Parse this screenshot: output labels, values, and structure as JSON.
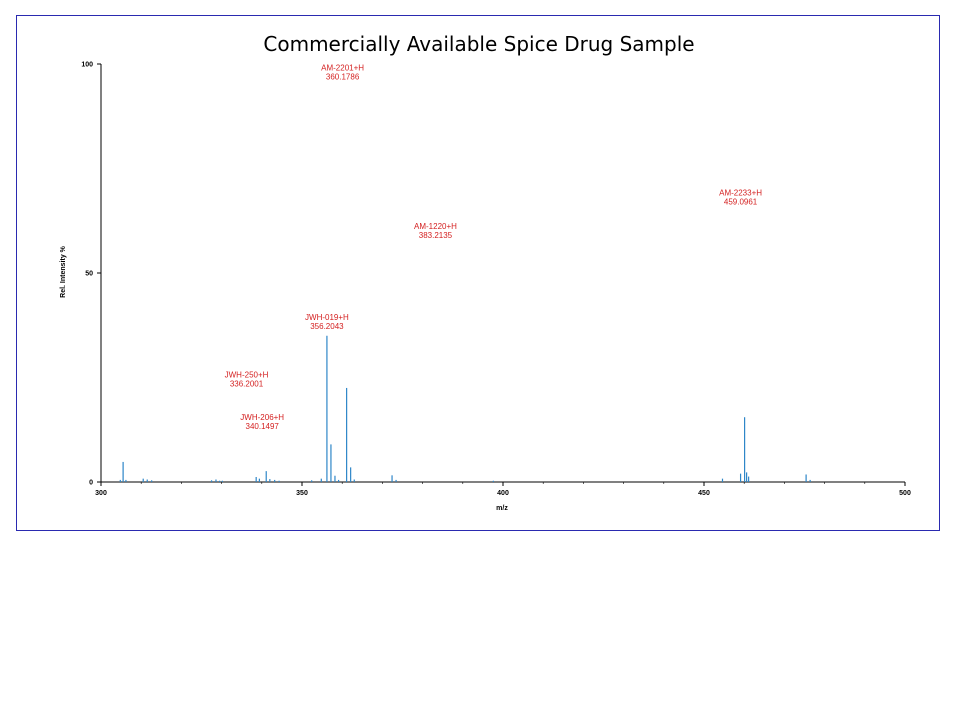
{
  "chart_data": {
    "type": "bar",
    "title": "Commercially Available Spice Drug Sample",
    "xlabel": "m/z",
    "ylabel": "Rel. Intensity %",
    "xlim": [
      300,
      500
    ],
    "ylim": [
      0,
      100
    ],
    "x_ticks": [
      300,
      350,
      400,
      450,
      500
    ],
    "y_ticks": [
      0,
      50,
      100
    ],
    "x_tick_labels": [
      "300",
      "350",
      "400",
      "450",
      "500"
    ],
    "y_tick_labels": [
      "0",
      "50",
      "100"
    ],
    "bar_color": "#2e86c8",
    "annotation_color": "#d42020",
    "peaks": [
      {
        "x": 304.8,
        "y": 0.5
      },
      {
        "x": 305.5,
        "y": 4.8
      },
      {
        "x": 306.2,
        "y": 0.5
      },
      {
        "x": 310.5,
        "y": 0.8
      },
      {
        "x": 311.5,
        "y": 0.6
      },
      {
        "x": 312.6,
        "y": 0.4
      },
      {
        "x": 327.5,
        "y": 0.4
      },
      {
        "x": 328.6,
        "y": 0.6
      },
      {
        "x": 329.5,
        "y": 0.3
      },
      {
        "x": 330.2,
        "y": 0.3
      },
      {
        "x": 338.6,
        "y": 1.2
      },
      {
        "x": 339.4,
        "y": 0.8
      },
      {
        "x": 341.1,
        "y": 2.6
      },
      {
        "x": 342.0,
        "y": 0.7
      },
      {
        "x": 343.2,
        "y": 0.5
      },
      {
        "x": 344.3,
        "y": 0.3
      },
      {
        "x": 352.4,
        "y": 0.4
      },
      {
        "x": 354.8,
        "y": 0.8
      },
      {
        "x": 356.2,
        "y": 35.0
      },
      {
        "x": 357.2,
        "y": 9.0
      },
      {
        "x": 358.2,
        "y": 1.5
      },
      {
        "x": 359.1,
        "y": 0.5
      },
      {
        "x": 361.1,
        "y": 22.5
      },
      {
        "x": 362.1,
        "y": 3.5
      },
      {
        "x": 363.0,
        "y": 0.6
      },
      {
        "x": 372.4,
        "y": 1.6
      },
      {
        "x": 373.4,
        "y": 0.5
      },
      {
        "x": 397.6,
        "y": 0.3
      },
      {
        "x": 454.6,
        "y": 0.8
      },
      {
        "x": 459.1,
        "y": 2.0
      },
      {
        "x": 460.1,
        "y": 15.5
      },
      {
        "x": 460.6,
        "y": 2.3
      },
      {
        "x": 461.1,
        "y": 1.3
      },
      {
        "x": 475.4,
        "y": 1.8
      },
      {
        "x": 476.4,
        "y": 0.5
      }
    ],
    "annotations": [
      {
        "name": "AM-2201+H",
        "mz": "360.1786",
        "x": 360.1,
        "y": 98.5
      },
      {
        "name": "AM-2233+H",
        "mz": "459.0961",
        "x": 459.1,
        "y": 68.5
      },
      {
        "name": "AM-1220+H",
        "mz": "383.2135",
        "x": 383.2,
        "y": 60.5
      },
      {
        "name": "JWH-019+H",
        "mz": "356.2043",
        "x": 356.2,
        "y": 38.8
      },
      {
        "name": "JWH-250+H",
        "mz": "336.2001",
        "x": 336.2,
        "y": 25.0
      },
      {
        "name": "JWH-206+H",
        "mz": "340.1497",
        "x": 340.1,
        "y": 14.8
      }
    ]
  }
}
